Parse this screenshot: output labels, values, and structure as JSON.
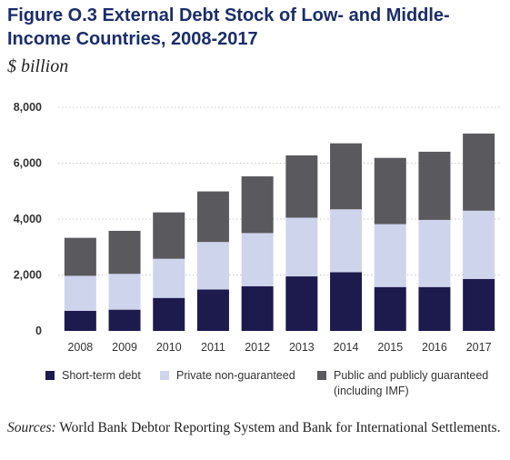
{
  "title": {
    "figure": "Figure O.3",
    "text": "External Debt Stock of Low- and Middle-Income Countries, 2008-2017"
  },
  "unit_label": "$ billion",
  "legend": {
    "items": [
      {
        "label": "Short-term debt",
        "color": "#1d1a4e"
      },
      {
        "label": "Private non-guaranteed",
        "color": "#cdd4ec"
      },
      {
        "label": "Public and publicly guaranteed (including IMF)",
        "color": "#5a5a5e"
      }
    ]
  },
  "source": {
    "label": "Sources:",
    "text": "World Bank Debtor Reporting System and Bank for International Settlements."
  },
  "chart_data": {
    "type": "bar",
    "stacked": true,
    "categories": [
      "2008",
      "2009",
      "2010",
      "2011",
      "2012",
      "2013",
      "2014",
      "2015",
      "2016",
      "2017"
    ],
    "series": [
      {
        "name": "Short-term debt",
        "color": "#1d1a4e",
        "values": [
          720,
          760,
          1180,
          1480,
          1600,
          1950,
          2100,
          1570,
          1570,
          1860
        ]
      },
      {
        "name": "Private non-guaranteed",
        "color": "#cdd4ec",
        "values": [
          1250,
          1280,
          1400,
          1700,
          1900,
          2100,
          2250,
          2250,
          2400,
          2440
        ]
      },
      {
        "name": "Public and publicly guaranteed (including IMF)",
        "color": "#5a5a5e",
        "values": [
          1360,
          1540,
          1660,
          1810,
          2030,
          2230,
          2360,
          2370,
          2440,
          2760
        ]
      }
    ],
    "ylim": [
      0,
      8000
    ],
    "yticks": [
      0,
      2000,
      4000,
      6000,
      8000
    ],
    "ytick_labels": [
      "0",
      "2,000",
      "4,000",
      "6,000",
      "8,000"
    ],
    "xlabel": "",
    "ylabel": "",
    "grid": true,
    "legend_position": "bottom"
  }
}
